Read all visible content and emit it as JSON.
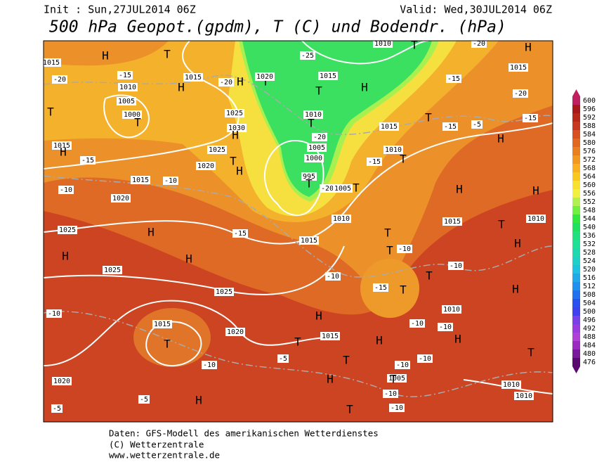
{
  "header": {
    "init": "Init : Sun,27JUL2014 06Z",
    "valid": "Valid: Wed,30JUL2014 06Z",
    "title": "500 hPa Geopot.(gpdm), T (C) und Bodendr. (hPa)"
  },
  "colorbar": {
    "ticks": [
      476,
      480,
      484,
      488,
      492,
      496,
      500,
      504,
      508,
      512,
      516,
      520,
      524,
      528,
      532,
      536,
      540,
      544,
      548,
      552,
      556,
      560,
      564,
      568,
      572,
      576,
      580,
      584,
      588,
      592,
      596,
      600
    ],
    "colors": [
      "#5a0a6e",
      "#7a1a9a",
      "#9a2ac0",
      "#b040d8",
      "#9a3ae0",
      "#7a40e8",
      "#4040f0",
      "#2a50f0",
      "#2070f0",
      "#2090f0",
      "#20a8e8",
      "#20c0e0",
      "#20d0c8",
      "#20d8b0",
      "#20e098",
      "#20e080",
      "#20e060",
      "#30e840",
      "#70f040",
      "#b0f050",
      "#f0f040",
      "#f8e030",
      "#f8c820",
      "#f8b020",
      "#f09820",
      "#e88020",
      "#e06820",
      "#d85020",
      "#c83820",
      "#b82818",
      "#a81818",
      "#c02060"
    ]
  },
  "map_labels": [
    "H",
    "T",
    "1015",
    "-20",
    "-15",
    "1015",
    "H",
    "-20",
    "H",
    "T",
    "1020",
    "1010",
    "1005",
    "T",
    "1000",
    "T",
    "1025",
    "1030",
    "H",
    "1025",
    "T",
    "H",
    "1020",
    "1015",
    "H",
    "-15",
    "1015",
    "-10",
    "-10",
    "1020",
    "-25",
    "1015",
    "H",
    "1010",
    "T",
    "-20",
    "H",
    "1015",
    "-15",
    "-20",
    "T",
    "1010",
    "T",
    "-20",
    "1005",
    "1000",
    "995",
    "T",
    "-20",
    "1005",
    "T",
    "T",
    "1015",
    "-15",
    "-5",
    "-15",
    "H",
    "1010",
    "T",
    "-15",
    "H",
    "H",
    "1025",
    "H",
    "-15",
    "1010",
    "1015",
    "T",
    "1010",
    "H",
    "H",
    "1025",
    "1015",
    "T",
    "T",
    "-10",
    "H",
    "-10",
    "1025",
    "-15",
    "T",
    "-10",
    "T",
    "H",
    "-10",
    "1015",
    "T",
    "1020",
    "H",
    "1015",
    "T",
    "H",
    "1010",
    "-10",
    "-10",
    "H",
    "T",
    "-10",
    "-5",
    "H",
    "T",
    "-10",
    "-10",
    "1005",
    "T",
    "1020",
    "-10",
    "-5",
    "H",
    "T",
    "-10",
    "1010",
    "1010",
    "-5"
  ],
  "footer": [
    "Daten: GFS-Modell des amerikanischen Wetterdienstes",
    "(C) Wetterzentrale",
    "www.wetterzentrale.de"
  ]
}
